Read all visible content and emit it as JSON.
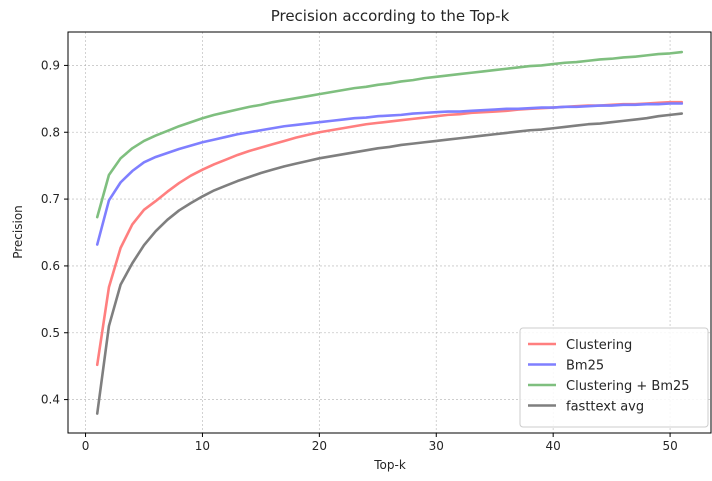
{
  "chart_data": {
    "type": "line",
    "title": "Precision according to the Top-k",
    "xlabel": "Top-k",
    "ylabel": "Precision",
    "xlim": [
      -1.5,
      53.5
    ],
    "ylim": [
      0.35,
      0.95
    ],
    "xticks": [
      0,
      10,
      20,
      30,
      40,
      50
    ],
    "yticks": [
      0.4,
      0.5,
      0.6,
      0.7,
      0.8,
      0.9
    ],
    "xtick_labels": [
      "0",
      "10",
      "20",
      "30",
      "40",
      "50"
    ],
    "ytick_labels": [
      "0.4",
      "0.5",
      "0.6",
      "0.7",
      "0.8",
      "0.9"
    ],
    "grid": true,
    "legend_position": "lower right",
    "x": [
      1,
      2,
      3,
      4,
      5,
      6,
      7,
      8,
      9,
      10,
      11,
      12,
      13,
      14,
      15,
      16,
      17,
      18,
      19,
      20,
      21,
      22,
      23,
      24,
      25,
      26,
      27,
      28,
      29,
      30,
      31,
      32,
      33,
      34,
      35,
      36,
      37,
      38,
      39,
      40,
      41,
      42,
      43,
      44,
      45,
      46,
      47,
      48,
      49,
      50,
      51
    ],
    "series": [
      {
        "name": "Clustering",
        "color": "#ff7f7f",
        "values": [
          0.452,
          0.568,
          0.627,
          0.662,
          0.684,
          0.697,
          0.711,
          0.724,
          0.735,
          0.744,
          0.752,
          0.759,
          0.766,
          0.772,
          0.777,
          0.782,
          0.787,
          0.792,
          0.796,
          0.8,
          0.803,
          0.806,
          0.809,
          0.812,
          0.814,
          0.816,
          0.818,
          0.82,
          0.822,
          0.824,
          0.826,
          0.827,
          0.829,
          0.83,
          0.831,
          0.832,
          0.834,
          0.835,
          0.836,
          0.837,
          0.838,
          0.839,
          0.84,
          0.84,
          0.841,
          0.842,
          0.842,
          0.843,
          0.844,
          0.845,
          0.845
        ]
      },
      {
        "name": "Bm25",
        "color": "#7f7fff",
        "values": [
          0.632,
          0.698,
          0.725,
          0.742,
          0.755,
          0.763,
          0.769,
          0.775,
          0.78,
          0.785,
          0.789,
          0.793,
          0.797,
          0.8,
          0.803,
          0.806,
          0.809,
          0.811,
          0.813,
          0.815,
          0.817,
          0.819,
          0.821,
          0.822,
          0.824,
          0.825,
          0.826,
          0.828,
          0.829,
          0.83,
          0.831,
          0.831,
          0.832,
          0.833,
          0.834,
          0.835,
          0.835,
          0.836,
          0.837,
          0.837,
          0.838,
          0.838,
          0.839,
          0.84,
          0.84,
          0.841,
          0.841,
          0.842,
          0.842,
          0.843,
          0.843
        ]
      },
      {
        "name": "Clustering + Bm25",
        "color": "#7fbf7f",
        "values": [
          0.673,
          0.736,
          0.761,
          0.776,
          0.787,
          0.795,
          0.802,
          0.809,
          0.815,
          0.821,
          0.826,
          0.83,
          0.834,
          0.838,
          0.841,
          0.845,
          0.848,
          0.851,
          0.854,
          0.857,
          0.86,
          0.863,
          0.866,
          0.868,
          0.871,
          0.873,
          0.876,
          0.878,
          0.881,
          0.883,
          0.885,
          0.887,
          0.889,
          0.891,
          0.893,
          0.895,
          0.897,
          0.899,
          0.9,
          0.902,
          0.904,
          0.905,
          0.907,
          0.909,
          0.91,
          0.912,
          0.913,
          0.915,
          0.917,
          0.918,
          0.92
        ]
      },
      {
        "name": "fasttext avg",
        "color": "#7f7f7f",
        "values": [
          0.379,
          0.51,
          0.572,
          0.604,
          0.631,
          0.652,
          0.669,
          0.683,
          0.694,
          0.704,
          0.713,
          0.72,
          0.727,
          0.733,
          0.739,
          0.744,
          0.749,
          0.753,
          0.757,
          0.761,
          0.764,
          0.767,
          0.77,
          0.773,
          0.776,
          0.778,
          0.781,
          0.783,
          0.785,
          0.787,
          0.789,
          0.791,
          0.793,
          0.795,
          0.797,
          0.799,
          0.801,
          0.803,
          0.804,
          0.806,
          0.808,
          0.81,
          0.812,
          0.813,
          0.815,
          0.817,
          0.819,
          0.821,
          0.824,
          0.826,
          0.828
        ]
      }
    ]
  }
}
